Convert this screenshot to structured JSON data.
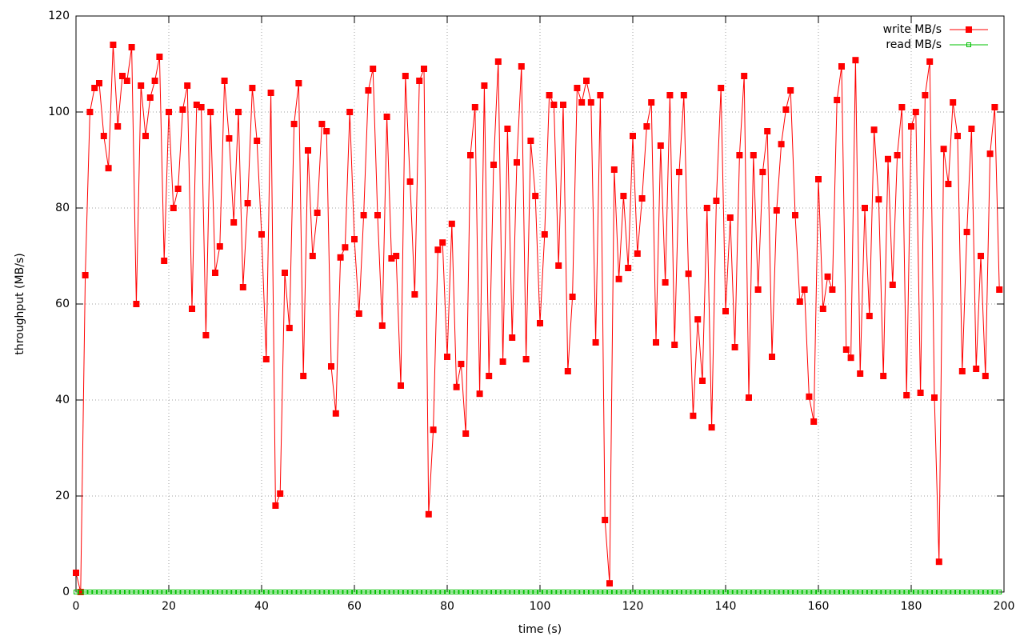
{
  "chart_data": {
    "type": "line",
    "xlabel": "time (s)",
    "ylabel": "throughput (MB/s)",
    "x": [
      0,
      1,
      2,
      3,
      4,
      5,
      6,
      7,
      8,
      9,
      10,
      11,
      12,
      13,
      14,
      15,
      16,
      17,
      18,
      19,
      20,
      21,
      22,
      23,
      24,
      25,
      26,
      27,
      28,
      29,
      30,
      31,
      32,
      33,
      34,
      35,
      36,
      37,
      38,
      39,
      40,
      41,
      42,
      43,
      44,
      45,
      46,
      47,
      48,
      49,
      50,
      51,
      52,
      53,
      54,
      55,
      56,
      57,
      58,
      59,
      60,
      61,
      62,
      63,
      64,
      65,
      66,
      67,
      68,
      69,
      70,
      71,
      72,
      73,
      74,
      75,
      76,
      77,
      78,
      79,
      80,
      81,
      82,
      83,
      84,
      85,
      86,
      87,
      88,
      89,
      90,
      91,
      92,
      93,
      94,
      95,
      96,
      97,
      98,
      99,
      100,
      101,
      102,
      103,
      104,
      105,
      106,
      107,
      108,
      109,
      110,
      111,
      112,
      113,
      114,
      115,
      116,
      117,
      118,
      119,
      120,
      121,
      122,
      123,
      124,
      125,
      126,
      127,
      128,
      129,
      130,
      131,
      132,
      133,
      134,
      135,
      136,
      137,
      138,
      139,
      140,
      141,
      142,
      143,
      144,
      145,
      146,
      147,
      148,
      149,
      150,
      151,
      152,
      153,
      154,
      155,
      156,
      157,
      158,
      159,
      160,
      161,
      162,
      163,
      164,
      165,
      166,
      167,
      168,
      169,
      170,
      171,
      172,
      173,
      174,
      175,
      176,
      177,
      178,
      179,
      180,
      181,
      182,
      183,
      184,
      185,
      186,
      187,
      188,
      189,
      190,
      191,
      192,
      193,
      194,
      195,
      196,
      197,
      198,
      199
    ],
    "series": [
      {
        "name": "write MB/s",
        "color": "#ff0000",
        "marker": "filled-square",
        "values": [
          4,
          0,
          66,
          100,
          105,
          106,
          95,
          88.3,
          114,
          97,
          107.5,
          106.5,
          113.5,
          60,
          105.5,
          95,
          103,
          106.5,
          111.5,
          69,
          100,
          80,
          84,
          100.5,
          105.5,
          59,
          101.5,
          101,
          53.5,
          100,
          66.5,
          72,
          106.5,
          94.5,
          77,
          100,
          63.5,
          81,
          105,
          94,
          74.5,
          48.5,
          104,
          18,
          20.5,
          66.5,
          55,
          97.5,
          106,
          45,
          92,
          70,
          79,
          97.5,
          96,
          47,
          37.2,
          69.7,
          71.8,
          100,
          73.5,
          58,
          78.5,
          104.5,
          109,
          78.5,
          55.5,
          99,
          69.5,
          70,
          43,
          107.5,
          85.5,
          62,
          106.5,
          109,
          16.2,
          33.8,
          71.3,
          72.8,
          49,
          76.7,
          42.7,
          47.5,
          33,
          91,
          101,
          41.3,
          105.5,
          45,
          89,
          110.5,
          48,
          96.5,
          53,
          89.5,
          109.5,
          48.5,
          94,
          82.5,
          56,
          74.5,
          103.5,
          101.5,
          68,
          101.5,
          46,
          61.5,
          105,
          102,
          106.5,
          102,
          52,
          103.5,
          15,
          1.8,
          88,
          65.2,
          82.5,
          67.5,
          95,
          70.5,
          82,
          97,
          102,
          52,
          93,
          64.5,
          103.5,
          51.5,
          87.5,
          103.5,
          66.3,
          36.7,
          56.8,
          44,
          80,
          34.3,
          81.5,
          105,
          58.5,
          78,
          51,
          91,
          107.5,
          40.5,
          91,
          63,
          87.5,
          96,
          49,
          79.5,
          93.3,
          100.5,
          104.5,
          78.5,
          60.5,
          63,
          40.7,
          35.5,
          86,
          59,
          65.7,
          63,
          102.5,
          109.5,
          50.5,
          48.8,
          110.8,
          45.5,
          80,
          57.5,
          96.3,
          81.8,
          45,
          90.2,
          64,
          91,
          101,
          41,
          97,
          100,
          41.5,
          103.5,
          110.5,
          40.5,
          6.3,
          92.3,
          85,
          102,
          95,
          46,
          75,
          96.5,
          46.5,
          70,
          45,
          91.3,
          101,
          63
        ]
      },
      {
        "name": "read MB/s",
        "color": "#00c000",
        "marker": "open-square",
        "values": [
          0,
          0,
          0,
          0,
          0,
          0,
          0,
          0,
          0,
          0,
          0,
          0,
          0,
          0,
          0,
          0,
          0,
          0,
          0,
          0,
          0,
          0,
          0,
          0,
          0,
          0,
          0,
          0,
          0,
          0,
          0,
          0,
          0,
          0,
          0,
          0,
          0,
          0,
          0,
          0,
          0,
          0,
          0,
          0,
          0,
          0,
          0,
          0,
          0,
          0,
          0,
          0,
          0,
          0,
          0,
          0,
          0,
          0,
          0,
          0,
          0,
          0,
          0,
          0,
          0,
          0,
          0,
          0,
          0,
          0,
          0,
          0,
          0,
          0,
          0,
          0,
          0,
          0,
          0,
          0,
          0,
          0,
          0,
          0,
          0,
          0,
          0,
          0,
          0,
          0,
          0,
          0,
          0,
          0,
          0,
          0,
          0,
          0,
          0,
          0,
          0,
          0,
          0,
          0,
          0,
          0,
          0,
          0,
          0,
          0,
          0,
          0,
          0,
          0,
          0,
          0,
          0,
          0,
          0,
          0,
          0,
          0,
          0,
          0,
          0,
          0,
          0,
          0,
          0,
          0,
          0,
          0,
          0,
          0,
          0,
          0,
          0,
          0,
          0,
          0,
          0,
          0,
          0,
          0,
          0,
          0,
          0,
          0,
          0,
          0,
          0,
          0,
          0,
          0,
          0,
          0,
          0,
          0,
          0,
          0,
          0,
          0,
          0,
          0,
          0,
          0,
          0,
          0,
          0,
          0,
          0,
          0,
          0,
          0,
          0,
          0,
          0,
          0,
          0,
          0,
          0,
          0,
          0,
          0,
          0,
          0,
          0,
          0,
          0,
          0,
          0,
          0,
          0,
          0,
          0,
          0,
          0,
          0,
          0,
          0
        ]
      }
    ],
    "xlim": [
      0,
      200
    ],
    "xticks": [
      0,
      20,
      40,
      60,
      80,
      100,
      120,
      140,
      160,
      180,
      200
    ],
    "ylim": [
      0,
      120
    ],
    "yticks": [
      0,
      20,
      40,
      60,
      80,
      100,
      120
    ],
    "grid": true,
    "legend": "top-right"
  }
}
